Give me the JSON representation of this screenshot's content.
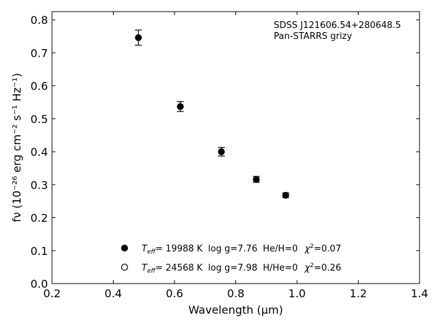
{
  "chart_data": {
    "type": "scatter",
    "title": "",
    "xlabel": "Wavelength (μm)",
    "ylabel": "fν (10⁻²⁶ erg cm⁻² s⁻¹ Hz⁻¹)",
    "xlim": [
      0.2,
      1.4
    ],
    "ylim": [
      0.0,
      0.825
    ],
    "xticks": [
      "0.2",
      "0.4",
      "0.6",
      "0.8",
      "1.0",
      "1.2",
      "1.4"
    ],
    "yticks": [
      "0.0",
      "0.1",
      "0.2",
      "0.3",
      "0.4",
      "0.5",
      "0.6",
      "0.7",
      "0.8"
    ],
    "grid": false,
    "annotation": {
      "line1": "SDSS J121606.54+280648.5",
      "line2": "Pan-STARRS grizy"
    },
    "series": [
      {
        "marker": "filled-circle",
        "color": "#000000",
        "x": [
          0.482,
          0.619,
          0.753,
          0.867,
          0.963
        ],
        "y": [
          0.746,
          0.537,
          0.4,
          0.316,
          0.268
        ],
        "yerr": [
          0.023,
          0.015,
          0.013,
          0.009,
          0.007
        ]
      }
    ],
    "legend": {
      "placement": "lower-center",
      "entries": [
        {
          "marker": "filled-circle",
          "teff": "= 19988 K",
          "logg": "log g=7.76",
          "comp": "He/H=0",
          "chi": "=0.07"
        },
        {
          "marker": "open-circle",
          "teff": "= 24568 K",
          "logg": "log g=7.98",
          "comp": "H/He=0",
          "chi": "=0.26"
        }
      ]
    }
  }
}
